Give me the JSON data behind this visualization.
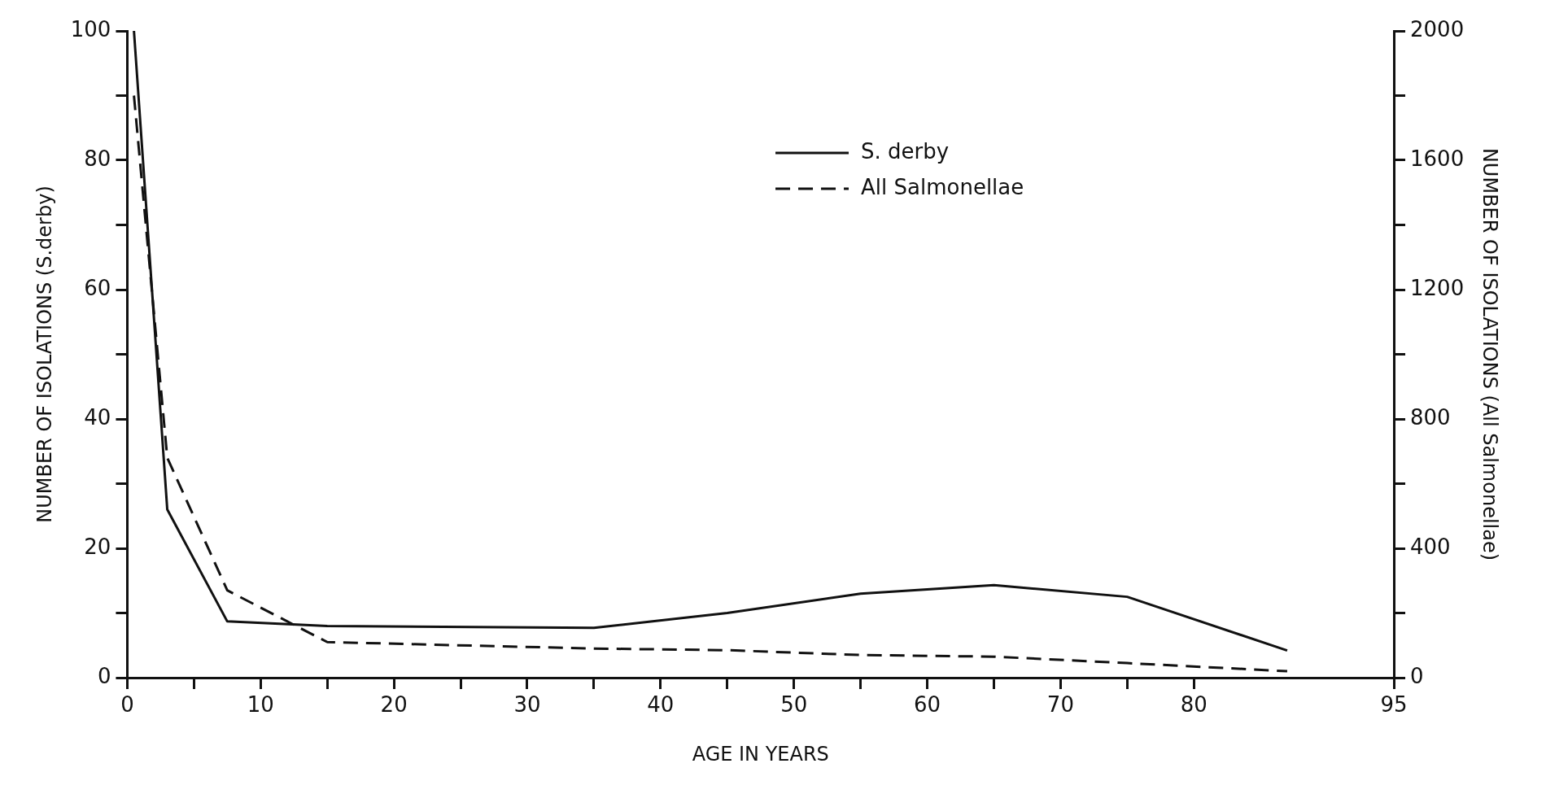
{
  "chart_data": {
    "type": "line",
    "xlabel": "AGE IN YEARS",
    "ylabel": "NUMBER OF ISOLATIONS (S.derby)",
    "y2label": "NUMBER OF ISOLATIONS (All Salmonellae)",
    "x": [
      0.5,
      3,
      7.5,
      15,
      35,
      45,
      55,
      65,
      75,
      87
    ],
    "series": [
      {
        "name": "S. derby",
        "color": "#111111",
        "line_style": "solid",
        "values": [
          100,
          26,
          8.7,
          8,
          7.7,
          10,
          13,
          14.3,
          12.5,
          4.2
        ]
      },
      {
        "name": "All Salmonellae",
        "color": "#111111",
        "line_style": "dashed",
        "axis": "y2",
        "values": [
          1800,
          680,
          270,
          110,
          90,
          85,
          70,
          65,
          45,
          20
        ]
      }
    ],
    "xlim": [
      0,
      95
    ],
    "xticks": [
      0,
      {
        "value": 5,
        "label": null
      },
      10,
      {
        "value": 15,
        "label": null
      },
      20,
      {
        "value": 25,
        "label": null
      },
      30,
      {
        "value": 35,
        "label": null
      },
      40,
      {
        "value": 45,
        "label": null
      },
      50,
      {
        "value": 55,
        "label": null
      },
      60,
      {
        "value": 65,
        "label": null
      },
      70,
      {
        "value": 75,
        "label": null
      },
      80,
      95
    ],
    "ylim": [
      0,
      100
    ],
    "yticks": [
      0,
      {
        "value": 10,
        "label": null
      },
      20,
      {
        "value": 30,
        "label": null
      },
      40,
      {
        "value": 50,
        "label": null
      },
      60,
      {
        "value": 70,
        "label": null
      },
      80,
      {
        "value": 90,
        "label": null
      },
      100
    ],
    "y2lim": [
      0,
      2000
    ],
    "y2ticks": [
      0,
      {
        "value": 200,
        "label": null
      },
      400,
      {
        "value": 600,
        "label": null
      },
      800,
      {
        "value": 1000,
        "label": null
      },
      1200,
      {
        "value": 1400,
        "label": null
      },
      1600,
      {
        "value": 1800,
        "label": null
      },
      2000
    ],
    "grid": false,
    "legend": "top right",
    "marker": "none"
  }
}
